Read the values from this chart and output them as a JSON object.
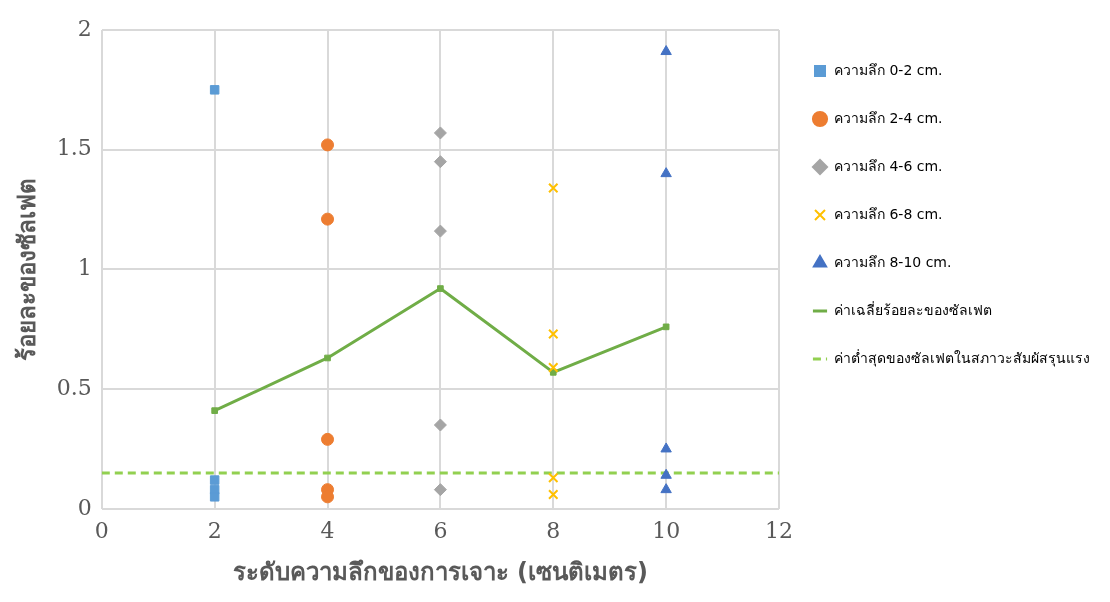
{
  "chart_data": {
    "type": "scatter",
    "xlabel": "ระดับความลึกของการเจาะ (เซนติเมตร)",
    "ylabel": "ร้อยละของซัลเฟต",
    "xlim": [
      0,
      12
    ],
    "xticks": [
      0,
      2,
      4,
      6,
      8,
      10,
      12
    ],
    "ylim": [
      0,
      2
    ],
    "yticks": [
      0,
      0.5,
      1,
      1.5,
      2
    ],
    "grid": true,
    "legend": "right",
    "series": [
      {
        "name": "ความลึก 0-2 cm.",
        "color": "#5b9bd5",
        "marker": "square",
        "x": [
          2,
          2,
          2,
          2
        ],
        "values": [
          1.75,
          0.12,
          0.08,
          0.05
        ]
      },
      {
        "name": "ความลึก 2-4 cm.",
        "color": "#ed7d31",
        "marker": "circle",
        "x": [
          4,
          4,
          4,
          4,
          4
        ],
        "values": [
          1.52,
          1.21,
          0.29,
          0.08,
          0.05
        ]
      },
      {
        "name": "ความลึก 4-6 cm.",
        "color": "#a5a5a5",
        "marker": "diamond",
        "x": [
          6,
          6,
          6,
          6,
          6
        ],
        "values": [
          1.57,
          1.45,
          1.16,
          0.35,
          0.08
        ]
      },
      {
        "name": "ความลึก 6-8 cm.",
        "color": "#ffc000",
        "marker": "cross",
        "x": [
          8,
          8,
          8,
          8,
          8
        ],
        "values": [
          1.34,
          0.73,
          0.59,
          0.13,
          0.06
        ]
      },
      {
        "name": "ความลึก 8-10 cm.",
        "color": "#4472c4",
        "marker": "triangle",
        "x": [
          10,
          10,
          10,
          10,
          10
        ],
        "values": [
          1.91,
          1.4,
          0.25,
          0.14,
          0.08
        ]
      },
      {
        "name": "ค่าเฉลี่ยร้อยละของซัลเฟต",
        "type": "line",
        "color": "#70ad47",
        "marker": "square",
        "line_style": "solid",
        "x": [
          2,
          4,
          6,
          8,
          10
        ],
        "values": [
          0.41,
          0.63,
          0.92,
          0.57,
          0.76
        ]
      }
    ],
    "ref_lines": [
      {
        "axis": "y",
        "value": 0.15,
        "label": "ค่าต่ำสุดของซัลเฟตในสภาวะสัมผัสรุนแรง",
        "color": "#92d050",
        "line_style": "dashed"
      }
    ]
  }
}
